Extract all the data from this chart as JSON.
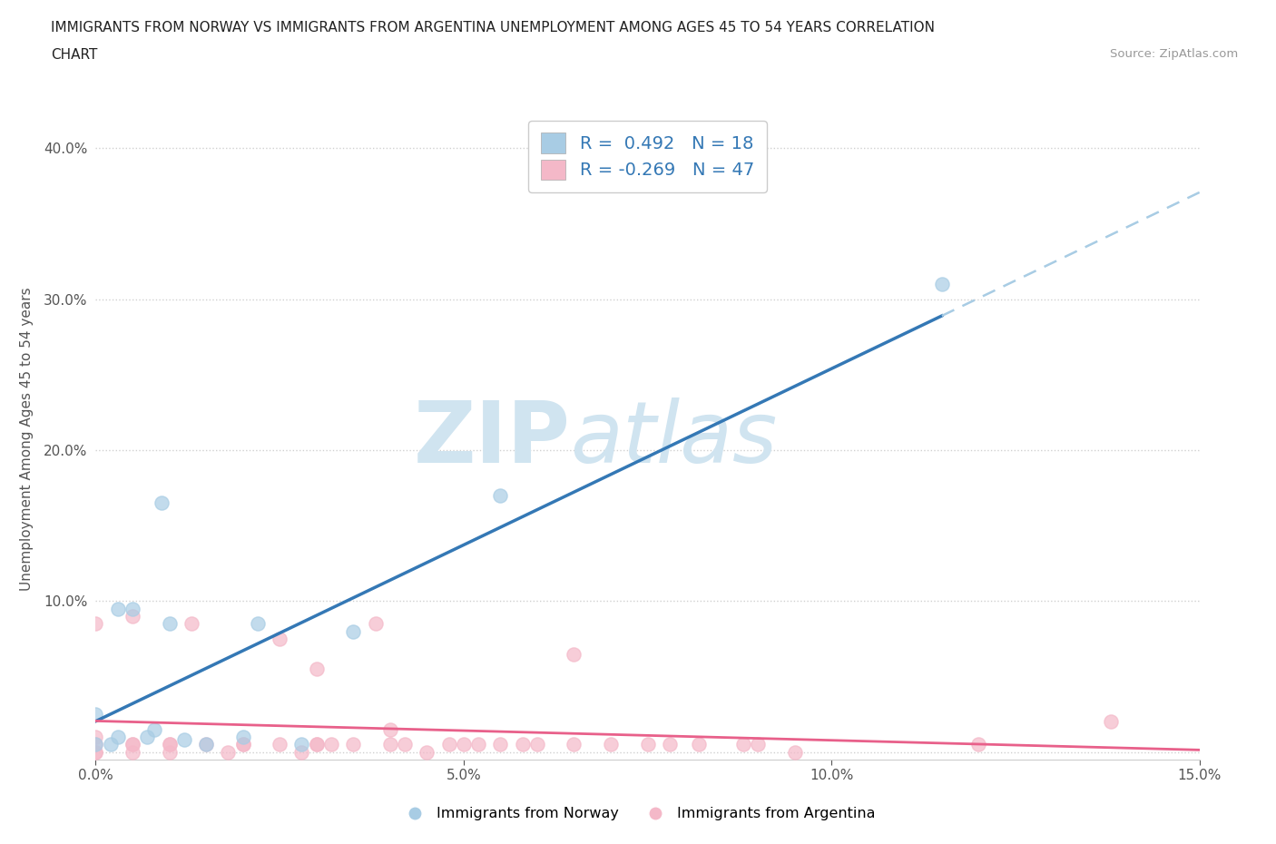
{
  "title_line1": "IMMIGRANTS FROM NORWAY VS IMMIGRANTS FROM ARGENTINA UNEMPLOYMENT AMONG AGES 45 TO 54 YEARS CORRELATION",
  "title_line2": "CHART",
  "source_text": "Source: ZipAtlas.com",
  "ylabel": "Unemployment Among Ages 45 to 54 years",
  "xlim": [
    0.0,
    0.15
  ],
  "ylim": [
    -0.005,
    0.42
  ],
  "x_ticks": [
    0.0,
    0.05,
    0.1,
    0.15
  ],
  "x_tick_labels": [
    "0.0%",
    "5.0%",
    "10.0%",
    "15.0%"
  ],
  "y_ticks": [
    0.0,
    0.1,
    0.2,
    0.3,
    0.4
  ],
  "y_tick_labels": [
    "",
    "10.0%",
    "20.0%",
    "30.0%",
    "40.0%"
  ],
  "norway_color": "#a8cce4",
  "argentina_color": "#f4b8c8",
  "norway_line_color": "#3478b5",
  "argentina_line_color": "#e8608a",
  "norway_line_dash_color": "#a8cce4",
  "grid_color": "#d0d0d0",
  "watermark_color": "#d0e4f0",
  "r_norway": 0.492,
  "n_norway": 18,
  "r_argentina": -0.269,
  "n_argentina": 47,
  "norway_points_x": [
    0.0,
    0.0,
    0.002,
    0.003,
    0.003,
    0.005,
    0.007,
    0.008,
    0.009,
    0.01,
    0.012,
    0.015,
    0.02,
    0.022,
    0.028,
    0.035,
    0.055,
    0.115
  ],
  "norway_points_y": [
    0.005,
    0.025,
    0.005,
    0.01,
    0.095,
    0.095,
    0.01,
    0.015,
    0.165,
    0.085,
    0.008,
    0.005,
    0.01,
    0.085,
    0.005,
    0.08,
    0.17,
    0.31
  ],
  "argentina_points_x": [
    0.0,
    0.0,
    0.0,
    0.0,
    0.0,
    0.005,
    0.005,
    0.005,
    0.005,
    0.01,
    0.01,
    0.01,
    0.013,
    0.015,
    0.018,
    0.02,
    0.02,
    0.025,
    0.025,
    0.028,
    0.03,
    0.03,
    0.03,
    0.032,
    0.035,
    0.038,
    0.04,
    0.04,
    0.042,
    0.045,
    0.048,
    0.05,
    0.052,
    0.055,
    0.058,
    0.06,
    0.065,
    0.065,
    0.07,
    0.075,
    0.078,
    0.082,
    0.088,
    0.09,
    0.095,
    0.12,
    0.138
  ],
  "argentina_points_y": [
    0.0,
    0.0,
    0.005,
    0.01,
    0.085,
    0.0,
    0.005,
    0.005,
    0.09,
    0.0,
    0.005,
    0.005,
    0.085,
    0.005,
    0.0,
    0.005,
    0.005,
    0.005,
    0.075,
    0.0,
    0.005,
    0.005,
    0.055,
    0.005,
    0.005,
    0.085,
    0.005,
    0.015,
    0.005,
    0.0,
    0.005,
    0.005,
    0.005,
    0.005,
    0.005,
    0.005,
    0.005,
    0.065,
    0.005,
    0.005,
    0.005,
    0.005,
    0.005,
    0.005,
    0.0,
    0.005,
    0.02
  ],
  "background_color": "#ffffff",
  "legend_text_color": "#3478b5",
  "legend_label_color": "#333333",
  "point_size": 120,
  "point_edge_width": 1.0
}
